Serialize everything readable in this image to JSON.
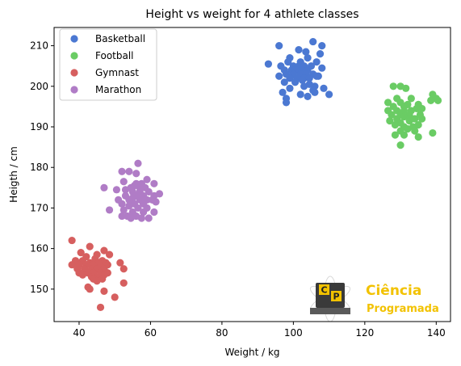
{
  "chart_data": {
    "type": "scatter",
    "title": "Height vs weight for 4 athlete classes",
    "xlabel": "Weight / kg",
    "ylabel": "Heigth / cm",
    "xlim": [
      33,
      144
    ],
    "ylim": [
      142,
      214.5
    ],
    "xticks": [
      40,
      60,
      80,
      100,
      120,
      140
    ],
    "yticks": [
      150,
      160,
      170,
      180,
      190,
      200,
      210
    ],
    "grid": false,
    "legend_position": "top-left",
    "series": [
      {
        "name": "Basketball",
        "color": "#4b78d2",
        "points": [
          [
            105.5,
            211
          ],
          [
            96,
            210
          ],
          [
            108,
            210
          ],
          [
            101.5,
            209
          ],
          [
            103.5,
            208.5
          ],
          [
            107.5,
            208
          ],
          [
            99,
            207
          ],
          [
            104,
            207
          ],
          [
            98.5,
            206
          ],
          [
            102,
            206
          ],
          [
            106.5,
            206
          ],
          [
            93,
            205.5
          ],
          [
            96.5,
            205
          ],
          [
            100,
            205
          ],
          [
            101.5,
            205
          ],
          [
            103,
            205
          ],
          [
            105,
            205
          ],
          [
            97.5,
            204
          ],
          [
            99.5,
            204
          ],
          [
            101,
            204
          ],
          [
            102.5,
            204
          ],
          [
            104,
            204
          ],
          [
            108,
            204.5
          ],
          [
            98,
            203
          ],
          [
            100,
            203
          ],
          [
            102,
            203
          ],
          [
            103.5,
            203
          ],
          [
            105.5,
            203
          ],
          [
            96,
            202.5
          ],
          [
            99,
            202
          ],
          [
            101,
            202
          ],
          [
            103,
            202
          ],
          [
            104.5,
            202
          ],
          [
            106.5,
            202.5
          ],
          [
            107,
            202.5
          ],
          [
            97.5,
            201
          ],
          [
            100.5,
            201
          ],
          [
            102.5,
            201.5
          ],
          [
            104.5,
            200.5
          ],
          [
            106,
            200
          ],
          [
            99,
            199.5
          ],
          [
            103,
            200
          ],
          [
            105.5,
            199
          ],
          [
            108.5,
            199.5
          ],
          [
            97,
            198.5
          ],
          [
            102,
            198
          ],
          [
            106,
            198.5
          ],
          [
            110,
            198
          ],
          [
            98,
            197
          ],
          [
            104,
            197.5
          ],
          [
            98,
            196
          ]
        ]
      },
      {
        "name": "Football",
        "color": "#6acc64",
        "points": [
          [
            128,
            200
          ],
          [
            130,
            200
          ],
          [
            131.5,
            199.5
          ],
          [
            139,
            198
          ],
          [
            140,
            197
          ],
          [
            129,
            197
          ],
          [
            133,
            197
          ],
          [
            138.5,
            196.5
          ],
          [
            140.5,
            196.5
          ],
          [
            126.5,
            196
          ],
          [
            130,
            196
          ],
          [
            132,
            195.5
          ],
          [
            135,
            195.5
          ],
          [
            128,
            195
          ],
          [
            131,
            195
          ],
          [
            134.5,
            194.5
          ],
          [
            136,
            194.5
          ],
          [
            126.5,
            194
          ],
          [
            129,
            194
          ],
          [
            131,
            194
          ],
          [
            133,
            194
          ],
          [
            127.5,
            193
          ],
          [
            130,
            193
          ],
          [
            132.5,
            193
          ],
          [
            135.5,
            193
          ],
          [
            129,
            192
          ],
          [
            131,
            192.5
          ],
          [
            134,
            192
          ],
          [
            136,
            192
          ],
          [
            127,
            191.5
          ],
          [
            130,
            191
          ],
          [
            132.5,
            191.5
          ],
          [
            128.5,
            190.5
          ],
          [
            131,
            190
          ],
          [
            133.5,
            190
          ],
          [
            135,
            190.5
          ],
          [
            130,
            189
          ],
          [
            132,
            189.5
          ],
          [
            134,
            189
          ],
          [
            139,
            188.5
          ],
          [
            128.5,
            188
          ],
          [
            131,
            188
          ],
          [
            135,
            187.5
          ],
          [
            130,
            185.5
          ]
        ]
      },
      {
        "name": "Gymnast",
        "color": "#d65f5f",
        "points": [
          [
            38,
            162
          ],
          [
            43,
            160.5
          ],
          [
            47,
            159.5
          ],
          [
            40.5,
            159
          ],
          [
            45,
            158.5
          ],
          [
            48.5,
            158.5
          ],
          [
            42,
            158
          ],
          [
            44.5,
            157.5
          ],
          [
            39,
            157
          ],
          [
            41,
            157
          ],
          [
            46.5,
            157
          ],
          [
            43,
            156.5
          ],
          [
            45.5,
            156.5
          ],
          [
            47.5,
            156.5
          ],
          [
            51.5,
            156.5
          ],
          [
            38,
            156
          ],
          [
            40,
            156
          ],
          [
            42,
            156
          ],
          [
            44,
            156
          ],
          [
            48,
            156
          ],
          [
            46,
            155.5
          ],
          [
            43.5,
            155
          ],
          [
            39.5,
            155
          ],
          [
            41.5,
            155
          ],
          [
            45,
            155
          ],
          [
            47,
            155
          ],
          [
            52.5,
            155
          ],
          [
            40,
            154
          ],
          [
            42.5,
            154
          ],
          [
            44,
            154
          ],
          [
            46,
            154
          ],
          [
            48,
            154
          ],
          [
            41,
            153.5
          ],
          [
            43.5,
            153
          ],
          [
            45.5,
            153
          ],
          [
            47,
            153.5
          ],
          [
            44,
            152.5
          ],
          [
            46.5,
            152.5
          ],
          [
            45,
            152
          ],
          [
            52.5,
            151.5
          ],
          [
            42.5,
            150.5
          ],
          [
            43,
            150
          ],
          [
            47,
            149.5
          ],
          [
            50,
            148
          ],
          [
            46,
            145.5
          ]
        ]
      },
      {
        "name": "Marathon",
        "color": "#b07cc6",
        "points": [
          [
            56.5,
            181
          ],
          [
            52,
            179
          ],
          [
            54,
            179
          ],
          [
            56,
            178.5
          ],
          [
            59,
            177
          ],
          [
            52.5,
            176.5
          ],
          [
            56,
            176
          ],
          [
            57.5,
            176
          ],
          [
            61,
            176
          ],
          [
            55.5,
            175.5
          ],
          [
            47,
            175
          ],
          [
            54.5,
            175
          ],
          [
            57,
            175
          ],
          [
            58.5,
            175
          ],
          [
            50.5,
            174.5
          ],
          [
            53,
            174.5
          ],
          [
            55,
            174
          ],
          [
            57,
            174
          ],
          [
            59.5,
            174
          ],
          [
            62.5,
            173.5
          ],
          [
            53,
            173
          ],
          [
            56,
            173
          ],
          [
            58,
            173
          ],
          [
            61,
            173
          ],
          [
            55,
            172.5
          ],
          [
            51,
            172
          ],
          [
            54,
            172
          ],
          [
            57,
            172
          ],
          [
            59,
            172
          ],
          [
            60.5,
            172
          ],
          [
            52,
            171
          ],
          [
            55.5,
            171
          ],
          [
            58,
            171
          ],
          [
            61.5,
            171.5
          ],
          [
            54,
            170.5
          ],
          [
            56.5,
            170
          ],
          [
            59,
            170
          ],
          [
            52.5,
            169.5
          ],
          [
            48.5,
            169.5
          ],
          [
            55,
            169
          ],
          [
            58,
            169
          ],
          [
            61,
            169
          ],
          [
            53.5,
            168
          ],
          [
            56,
            168
          ],
          [
            52,
            168
          ],
          [
            54.5,
            167.5
          ],
          [
            57.5,
            167.5
          ],
          [
            59.5,
            167.5
          ]
        ]
      }
    ]
  },
  "watermark": {
    "letter_c": "C",
    "letter_p": "P",
    "line1": "Ciência",
    "line2": "Programada",
    "color": "#f2c200"
  }
}
